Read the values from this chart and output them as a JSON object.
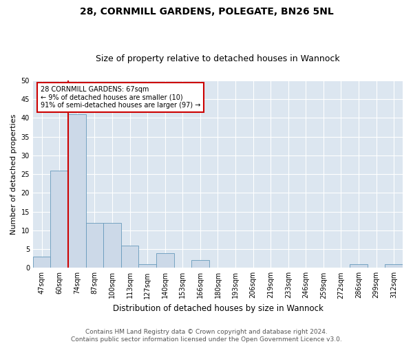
{
  "title1": "28, CORNMILL GARDENS, POLEGATE, BN26 5NL",
  "title2": "Size of property relative to detached houses in Wannock",
  "xlabel": "Distribution of detached houses by size in Wannock",
  "ylabel": "Number of detached properties",
  "bar_values": [
    3,
    26,
    41,
    12,
    12,
    6,
    1,
    4,
    0,
    2,
    0,
    0,
    0,
    0,
    0,
    0,
    0,
    0,
    1,
    0,
    1
  ],
  "bar_labels": [
    "47sqm",
    "60sqm",
    "74sqm",
    "87sqm",
    "100sqm",
    "113sqm",
    "127sqm",
    "140sqm",
    "153sqm",
    "166sqm",
    "180sqm",
    "193sqm",
    "206sqm",
    "219sqm",
    "233sqm",
    "246sqm",
    "259sqm",
    "272sqm",
    "286sqm",
    "299sqm",
    "312sqm"
  ],
  "bar_color": "#ccd9e8",
  "bar_edge_color": "#6699bb",
  "vline_color": "#cc0000",
  "vline_x": 1.5,
  "annotation_text": "28 CORNMILL GARDENS: 67sqm\n← 9% of detached houses are smaller (10)\n91% of semi-detached houses are larger (97) →",
  "annotation_box_color": "#ffffff",
  "annotation_box_edge": "#cc0000",
  "ylim": [
    0,
    50
  ],
  "yticks": [
    0,
    5,
    10,
    15,
    20,
    25,
    30,
    35,
    40,
    45,
    50
  ],
  "bg_color": "#dce6f0",
  "footer": "Contains HM Land Registry data © Crown copyright and database right 2024.\nContains public sector information licensed under the Open Government Licence v3.0.",
  "title1_fontsize": 10,
  "title2_fontsize": 9,
  "xlabel_fontsize": 8.5,
  "ylabel_fontsize": 8,
  "tick_fontsize": 7,
  "footer_fontsize": 6.5
}
